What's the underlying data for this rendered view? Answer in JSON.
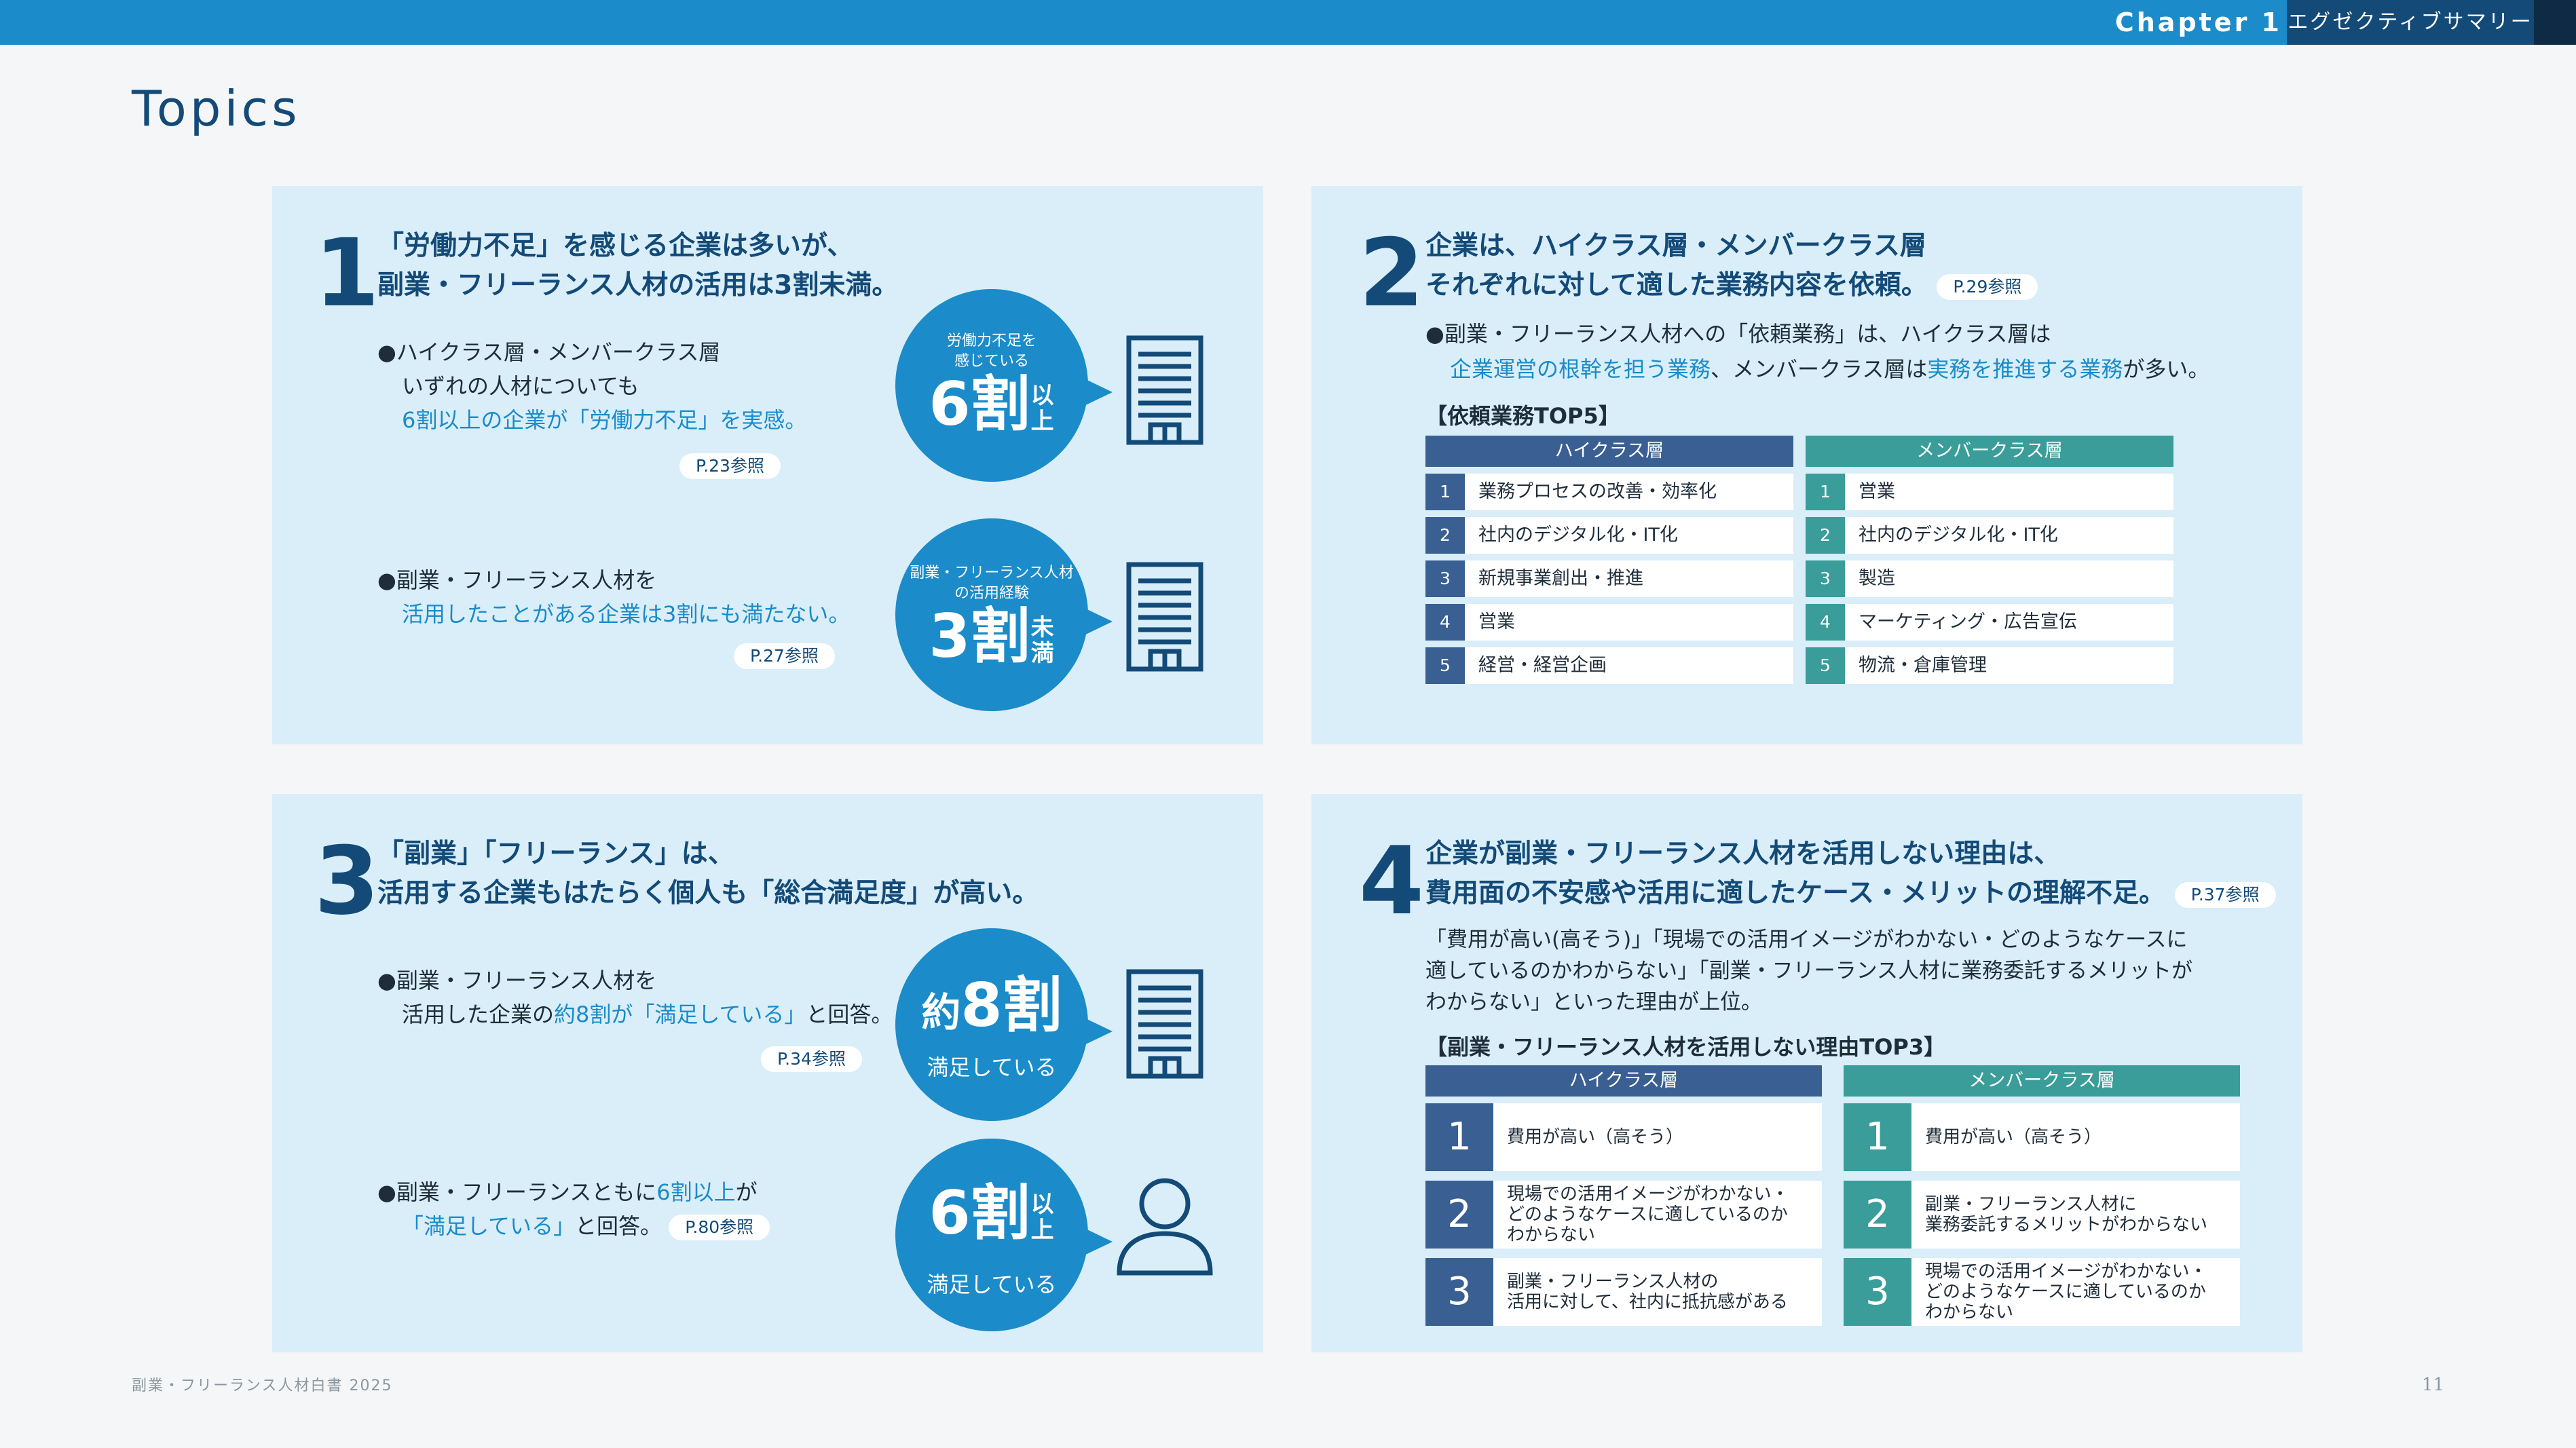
{
  "header": {
    "chapter": "Chapter 1",
    "section": "エグゼクティブサマリー"
  },
  "page_title": "Topics",
  "footer": {
    "publication": "副業・フリーランス人材白書 2025",
    "page_number": "11"
  },
  "topics": [
    {
      "number": "1",
      "headline": [
        "「労働力不足」を感じる企業は多いが、",
        "副業・フリーランス人材の活用は3割未満。"
      ],
      "items": [
        {
          "lines": [
            "●ハイクラス層・メンバークラス層",
            "いずれの人材についても"
          ],
          "highlight": "6割以上の企業が「労働力不足」を実感。",
          "ref": "P.23参照",
          "bubble": {
            "caption": "労働力不足を\n感じている",
            "big": "6割",
            "small": "以上",
            "icon": "building-icon"
          }
        },
        {
          "lines": [
            "●副業・フリーランス人材を"
          ],
          "highlight": "活用したことがある企業は3割にも満たない。",
          "ref": "P.27参照",
          "bubble": {
            "caption": "副業・フリーランス人材\nの活用経験",
            "big": "3割",
            "small": "未満",
            "icon": "building-icon"
          }
        }
      ]
    },
    {
      "number": "2",
      "headline": [
        "企業は、ハイクラス層・メンバークラス層",
        "それぞれに対して適した業務内容を依頼。"
      ],
      "ref": "P.29参照",
      "summary": {
        "prefix": "●副業・フリーランス人材への「依頼業務」は、ハイクラス層は",
        "hl1": "企業運営の根幹を担う業務",
        "mid": "、メンバークラス層は",
        "hl2": "実務を推進する業務",
        "suffix": "が多い。"
      },
      "table_title": "【依頼業務TOP5】",
      "columns": [
        {
          "label": "ハイクラス層",
          "rows": [
            {
              "rank": "1",
              "text": "業務プロセスの改善・効率化"
            },
            {
              "rank": "2",
              "text": "社内のデジタル化・IT化"
            },
            {
              "rank": "3",
              "text": "新規事業創出・推進"
            },
            {
              "rank": "4",
              "text": "営業"
            },
            {
              "rank": "5",
              "text": "経営・経営企画"
            }
          ]
        },
        {
          "label": "メンバークラス層",
          "rows": [
            {
              "rank": "1",
              "text": "営業"
            },
            {
              "rank": "2",
              "text": "社内のデジタル化・IT化"
            },
            {
              "rank": "3",
              "text": "製造"
            },
            {
              "rank": "4",
              "text": "マーケティング・広告宣伝"
            },
            {
              "rank": "5",
              "text": "物流・倉庫管理"
            }
          ]
        }
      ]
    },
    {
      "number": "3",
      "headline": [
        "「副業」「フリーランス」は、",
        "活用する企業もはたらく個人も「総合満足度」が高い。"
      ],
      "items": [
        {
          "line1": "●副業・フリーランス人材を",
          "line2_pre": "活用した企業の",
          "line2_hl": "約8割が「満足している」",
          "line2_post": "と回答。",
          "ref": "P.34参照",
          "bubble": {
            "big_prefix": "約",
            "big": "8割",
            "sub": "満足している",
            "icon": "building-icon"
          }
        },
        {
          "line1_pre": "●副業・フリーランスともに",
          "line1_hl": "6割以上",
          "line1_post": "が",
          "line2_hl": "「満足している」",
          "line2_post": "と回答。",
          "ref": "P.80参照",
          "bubble": {
            "big": "6割",
            "small": "以上",
            "sub": "満足している",
            "icon": "person-icon"
          }
        }
      ]
    },
    {
      "number": "4",
      "headline": [
        "企業が副業・フリーランス人材を活用しない理由は、",
        "費用面の不安感や活用に適したケース・メリットの理解不足。"
      ],
      "ref": "P.37参照",
      "description": "「費用が高い(高そう)」「現場での活用イメージがわかない・どのようなケースに\n適しているのかわからない」「副業・フリーランス人材に業務委託するメリットが\nわからない」といった理由が上位。",
      "table_title": "【副業・フリーランス人材を活用しない理由TOP3】",
      "columns": [
        {
          "label": "ハイクラス層",
          "rows": [
            {
              "rank": "1",
              "text": "費用が高い（高そう）"
            },
            {
              "rank": "2",
              "text": "現場での活用イメージがわかない・\nどのようなケースに適しているのか\nわからない"
            },
            {
              "rank": "3",
              "text": "副業・フリーランス人材の\n活用に対して、社内に抵抗感がある"
            }
          ]
        },
        {
          "label": "メンバークラス層",
          "rows": [
            {
              "rank": "1",
              "text": "費用が高い（高そう）"
            },
            {
              "rank": "2",
              "text": "副業・フリーランス人材に\n業務委託するメリットがわからない"
            },
            {
              "rank": "3",
              "text": "現場での活用イメージがわかない・\nどのようなケースに適しているのか\nわからない"
            }
          ]
        }
      ]
    }
  ],
  "colors": {
    "accent_blue": "#1b8bc9",
    "navy": "#134a78",
    "navy_column": "#3a5f92",
    "teal_column": "#3a9d99",
    "panel_bg": "#d9eef8"
  }
}
